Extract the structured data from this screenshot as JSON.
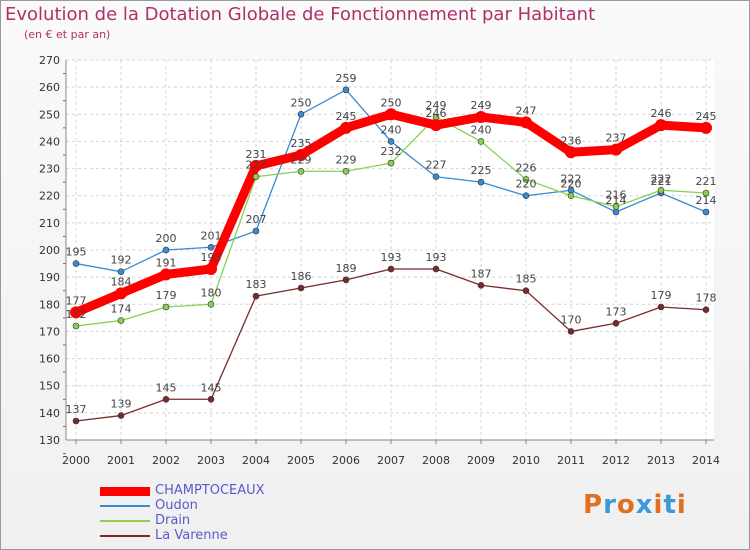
{
  "title": "Evolution de la Dotation Globale de Fonctionnement par Habitant",
  "subtitle": "(en € et par an)",
  "logo": {
    "text": "Proxiti",
    "colors": [
      "#e07020",
      "#3a9ad9",
      "#e07020",
      "#3a9ad9",
      "#e07020",
      "#3a9ad9",
      "#e07020"
    ]
  },
  "chart_data": {
    "type": "line",
    "x": [
      "2000",
      "2001",
      "2002",
      "2003",
      "2004",
      "2005",
      "2006",
      "2007",
      "2008",
      "2009",
      "2010",
      "2011",
      "2012",
      "2013",
      "2014"
    ],
    "ylim": [
      130,
      270
    ],
    "yticks": [
      "130",
      "140",
      "150",
      "160",
      "170",
      "180",
      "190",
      "200",
      "210",
      "220",
      "230",
      "240",
      "250",
      "260",
      "270"
    ],
    "grid": true,
    "legend_placement": "bottom-left",
    "series": [
      {
        "name": "CHAMPTOCEAUX",
        "color": "#ff0000",
        "values": [
          177,
          184,
          191,
          193,
          231,
          235,
          245,
          250,
          246,
          249,
          247,
          236,
          237,
          246,
          245
        ],
        "labels": [
          "177",
          "184",
          "191",
          "193",
          "231",
          "235",
          "245",
          "250",
          "246",
          "249",
          "247",
          "236",
          "237",
          "246",
          "245"
        ]
      },
      {
        "name": "Oudon",
        "color": "#3a8ad0",
        "values": [
          195,
          192,
          200,
          201,
          207,
          250,
          259,
          240,
          227,
          225,
          220,
          222,
          214,
          221,
          214
        ],
        "labels": [
          "195",
          "192",
          "200",
          "201",
          "207",
          "250",
          "259",
          "240",
          "227",
          "225",
          "220",
          "222",
          "214",
          "221",
          "214"
        ]
      },
      {
        "name": "Drain",
        "color": "#88d050",
        "values": [
          172,
          174,
          179,
          180,
          227,
          229,
          229,
          232,
          249,
          240,
          226,
          220,
          216,
          222,
          221
        ],
        "labels": [
          "172",
          "174",
          "179",
          "180",
          "227",
          "229",
          "229",
          "232",
          "249",
          "240",
          "226",
          "220",
          "216",
          "222",
          "221"
        ]
      },
      {
        "name": "La Varenne",
        "color": "#7a2a2a",
        "values": [
          137,
          139,
          145,
          145,
          183,
          186,
          189,
          193,
          193,
          187,
          185,
          170,
          173,
          179,
          178
        ],
        "labels": [
          "137",
          "139",
          "145",
          "145",
          "183",
          "186",
          "189",
          "193",
          "193",
          "187",
          "185",
          "170",
          "173",
          "179",
          "178"
        ]
      }
    ]
  }
}
